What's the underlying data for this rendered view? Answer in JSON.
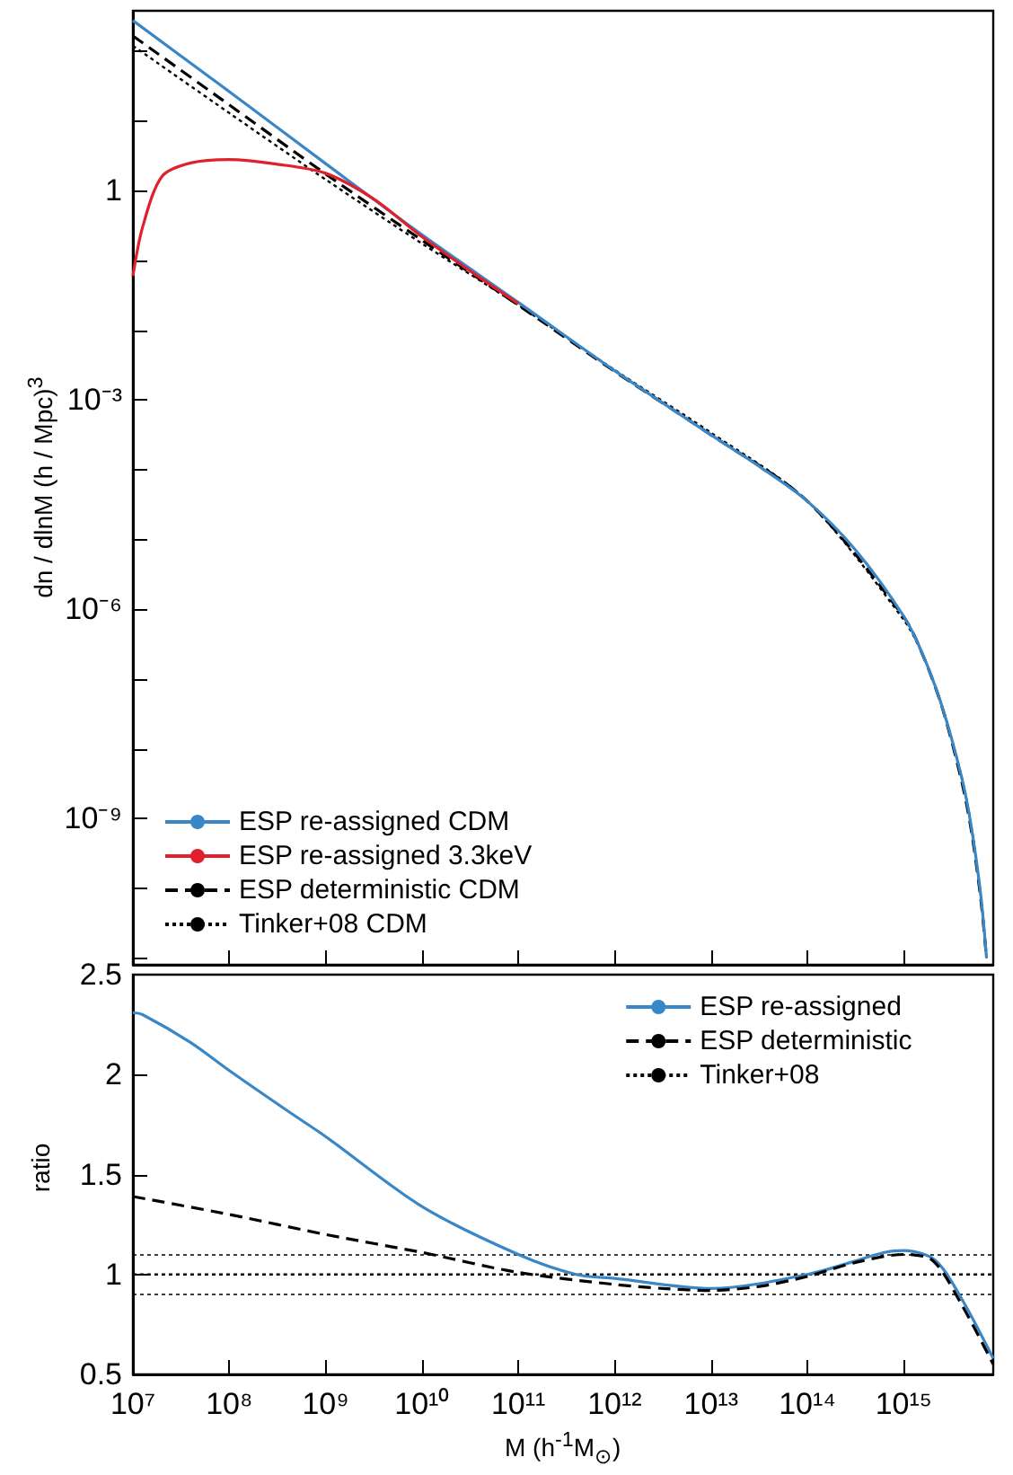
{
  "chart_data": [
    {
      "type": "line",
      "ylabel": "dn / dlnM  (h / Mpc)$^{3}$",
      "log": "xy",
      "grid": false,
      "legend": "bottom left",
      "marker": "none",
      "tick_labels": "y",
      "xlim": [
        10000000.0,
        8500000000000000.0
      ],
      "ylim": [
        8e-12,
        380
      ],
      "xticks": [
        {
          "value": 10000000.0,
          "label": null
        },
        {
          "value": 100000000.0,
          "label": null
        },
        {
          "value": 1000000000.0,
          "label": null
        },
        {
          "value": 10000000000.0,
          "label": null
        },
        {
          "value": 100000000000.0,
          "label": null
        },
        {
          "value": 1000000000000.0,
          "label": null
        },
        {
          "value": 10000000000000.0,
          "label": null
        },
        {
          "value": 100000000000000.0,
          "label": null
        },
        {
          "value": 1000000000000000.0,
          "label": null
        }
      ],
      "yticks": [
        {
          "value": 1e-11,
          "label": null
        },
        {
          "value": 1e-10,
          "label": null
        },
        {
          "value": 1e-09,
          "label": "10⁻⁹"
        },
        {
          "value": 1e-08,
          "label": null
        },
        {
          "value": 1e-07,
          "label": null
        },
        {
          "value": 1e-06,
          "label": "10⁻⁶"
        },
        {
          "value": 1e-05,
          "label": null
        },
        {
          "value": 0.0001,
          "label": null
        },
        {
          "value": 0.001,
          "label": "10⁻³"
        },
        {
          "value": 0.01,
          "label": null
        },
        {
          "value": 0.1,
          "label": null
        },
        {
          "value": 1,
          "label": "1"
        },
        {
          "value": 10,
          "label": null
        },
        {
          "value": 100,
          "label": null
        }
      ],
      "series": [
        {
          "name": "ESP re-assigned CDM",
          "color": "#3a87c8",
          "line_style": "solid",
          "x": [
            10000000.0,
            100000000.0,
            1000000000.0,
            10000000000.0,
            100000000000.0,
            1000000000000.0,
            10000000000000.0,
            31600000000000.0,
            100000000000000.0,
            316000000000000.0,
            1000000000000000.0,
            1580000000000000.0,
            2510000000000000.0,
            3980000000000000.0,
            5010000000000000.0,
            6310000000000000.0,
            7240000000000000.0
          ],
          "values": [
            275,
            26.3,
            2.45,
            0.234,
            0.0251,
            0.00263,
            0.000316,
            0.000112,
            3.55e-05,
            7.08e-06,
            7.94e-07,
            2.24e-07,
            3.98e-08,
            3.98e-09,
            7.94e-10,
            7.94e-11,
            1e-11
          ]
        },
        {
          "name": "ESP re-assigned 3.3keV",
          "color": "#e0202a",
          "line_style": "solid",
          "x": [
            10000000.0,
            12600000.0,
            20000000.0,
            39800000.0,
            100000000.0,
            316000000.0,
            1000000000.0,
            3160000000.0,
            10000000000.0,
            31600000000.0,
            100000000000.0
          ],
          "values": [
            0.06,
            0.3,
            1.6,
            2.5,
            2.8,
            2.4,
            1.78,
            0.76,
            0.219,
            0.0708,
            0.024
          ]
        },
        {
          "name": "ESP deterministic CDM",
          "color": "#000000",
          "line_style": "dashed",
          "x": [
            10000000.0,
            100000000.0,
            1000000000.0,
            10000000000.0,
            100000000000.0,
            1000000000000.0,
            10000000000000.0,
            100000000000000.0,
            1000000000000000.0,
            1580000000000000.0,
            2510000000000000.0,
            3980000000000000.0,
            5010000000000000.0,
            6310000000000000.0,
            7240000000000000.0
          ],
          "values": [
            166,
            17.0,
            1.74,
            0.195,
            0.0229,
            0.00257,
            0.000316,
            3.55e-05,
            7.76e-07,
            2.2e-07,
            3.9e-08,
            3.5e-09,
            7e-10,
            7e-11,
            1e-11
          ]
        },
        {
          "name": "Tinker+08 CDM",
          "color": "#000000",
          "line_style": "dotted",
          "x": [
            10000000.0,
            100000000.0,
            1000000000.0,
            10000000000.0,
            100000000000.0,
            1000000000000.0,
            10000000000000.0,
            100000000000000.0,
            1000000000000000.0,
            1580000000000000.0,
            2510000000000000.0,
            3980000000000000.0,
            5010000000000000.0,
            6310000000000000.0,
            7240000000000000.0
          ],
          "values": [
            120,
            13.0,
            1.45,
            0.175,
            0.0229,
            0.00269,
            0.000339,
            3.55e-05,
            7.08e-07,
            2.2e-07,
            4e-08,
            4e-09,
            8e-10,
            8e-11,
            1e-11
          ]
        }
      ]
    },
    {
      "type": "line",
      "xlabel": "M (h$^{-1}$M$_{⊙}$)",
      "ylabel": "ratio",
      "log": "x",
      "grid": false,
      "legend": "top right",
      "marker": "none",
      "xlim": [
        10000000.0,
        8500000000000000.0
      ],
      "ylim": [
        0.5,
        2.5
      ],
      "xticks": [
        {
          "value": 10000000.0,
          "label": "10⁷"
        },
        {
          "value": 100000000.0,
          "label": "10⁸"
        },
        {
          "value": 1000000000.0,
          "label": "10⁹"
        },
        {
          "value": 10000000000.0,
          "label": "10¹⁰"
        },
        {
          "value": 100000000000.0,
          "label": "10¹¹"
        },
        {
          "value": 1000000000000.0,
          "label": "10¹²"
        },
        {
          "value": 10000000000000.0,
          "label": "10¹³"
        },
        {
          "value": 100000000000000.0,
          "label": "10¹⁴"
        },
        {
          "value": 1000000000000000.0,
          "label": "10¹⁵"
        }
      ],
      "yticks": [
        0.5,
        1,
        1.5,
        2,
        2.5
      ],
      "ref_lines": [
        {
          "axis": "y",
          "value": 1.1,
          "color": "#000000",
          "line_style": "dotted"
        },
        {
          "axis": "y",
          "value": 0.9,
          "color": "#000000",
          "line_style": "dotted"
        }
      ],
      "series": [
        {
          "name": "ESP re-assigned",
          "color": "#3a87c8",
          "line_style": "solid",
          "x": [
            10000000.0,
            12600000.0,
            39800000.0,
            100000000.0,
            398000000.0,
            1000000000.0,
            10000000000.0,
            100000000000.0,
            398000000000.0,
            1000000000000.0,
            10000000000000.0,
            100000000000000.0,
            631000000000000.0,
            1000000000000000.0,
            2140000000000000.0,
            3980000000000000.0,
            8500000000000000.0
          ],
          "values": [
            2.31,
            2.3,
            2.16,
            2.02,
            1.82,
            1.69,
            1.34,
            1.1,
            1.0,
            0.98,
            0.93,
            1.0,
            1.11,
            1.12,
            1.07,
            0.88,
            0.58
          ]
        },
        {
          "name": "ESP deterministic",
          "color": "#000000",
          "line_style": "dashed",
          "x": [
            10000000.0,
            100000000.0,
            1000000000.0,
            10000000000.0,
            100000000000.0,
            1000000000000.0,
            3160000000000.0,
            10000000000000.0,
            31600000000000.0,
            100000000000000.0,
            316000000000000.0,
            1000000000000000.0,
            2000000000000000.0,
            3980000000000000.0,
            8500000000000000.0
          ],
          "values": [
            1.39,
            1.3,
            1.2,
            1.11,
            1.01,
            0.95,
            0.93,
            0.92,
            0.94,
            0.99,
            1.06,
            1.1,
            1.07,
            0.85,
            0.55
          ]
        },
        {
          "name": "Tinker+08",
          "color": "#000000",
          "line_style": "dotted",
          "x": [
            10000000.0,
            8500000000000000.0
          ],
          "values": [
            1,
            1
          ]
        }
      ]
    }
  ]
}
